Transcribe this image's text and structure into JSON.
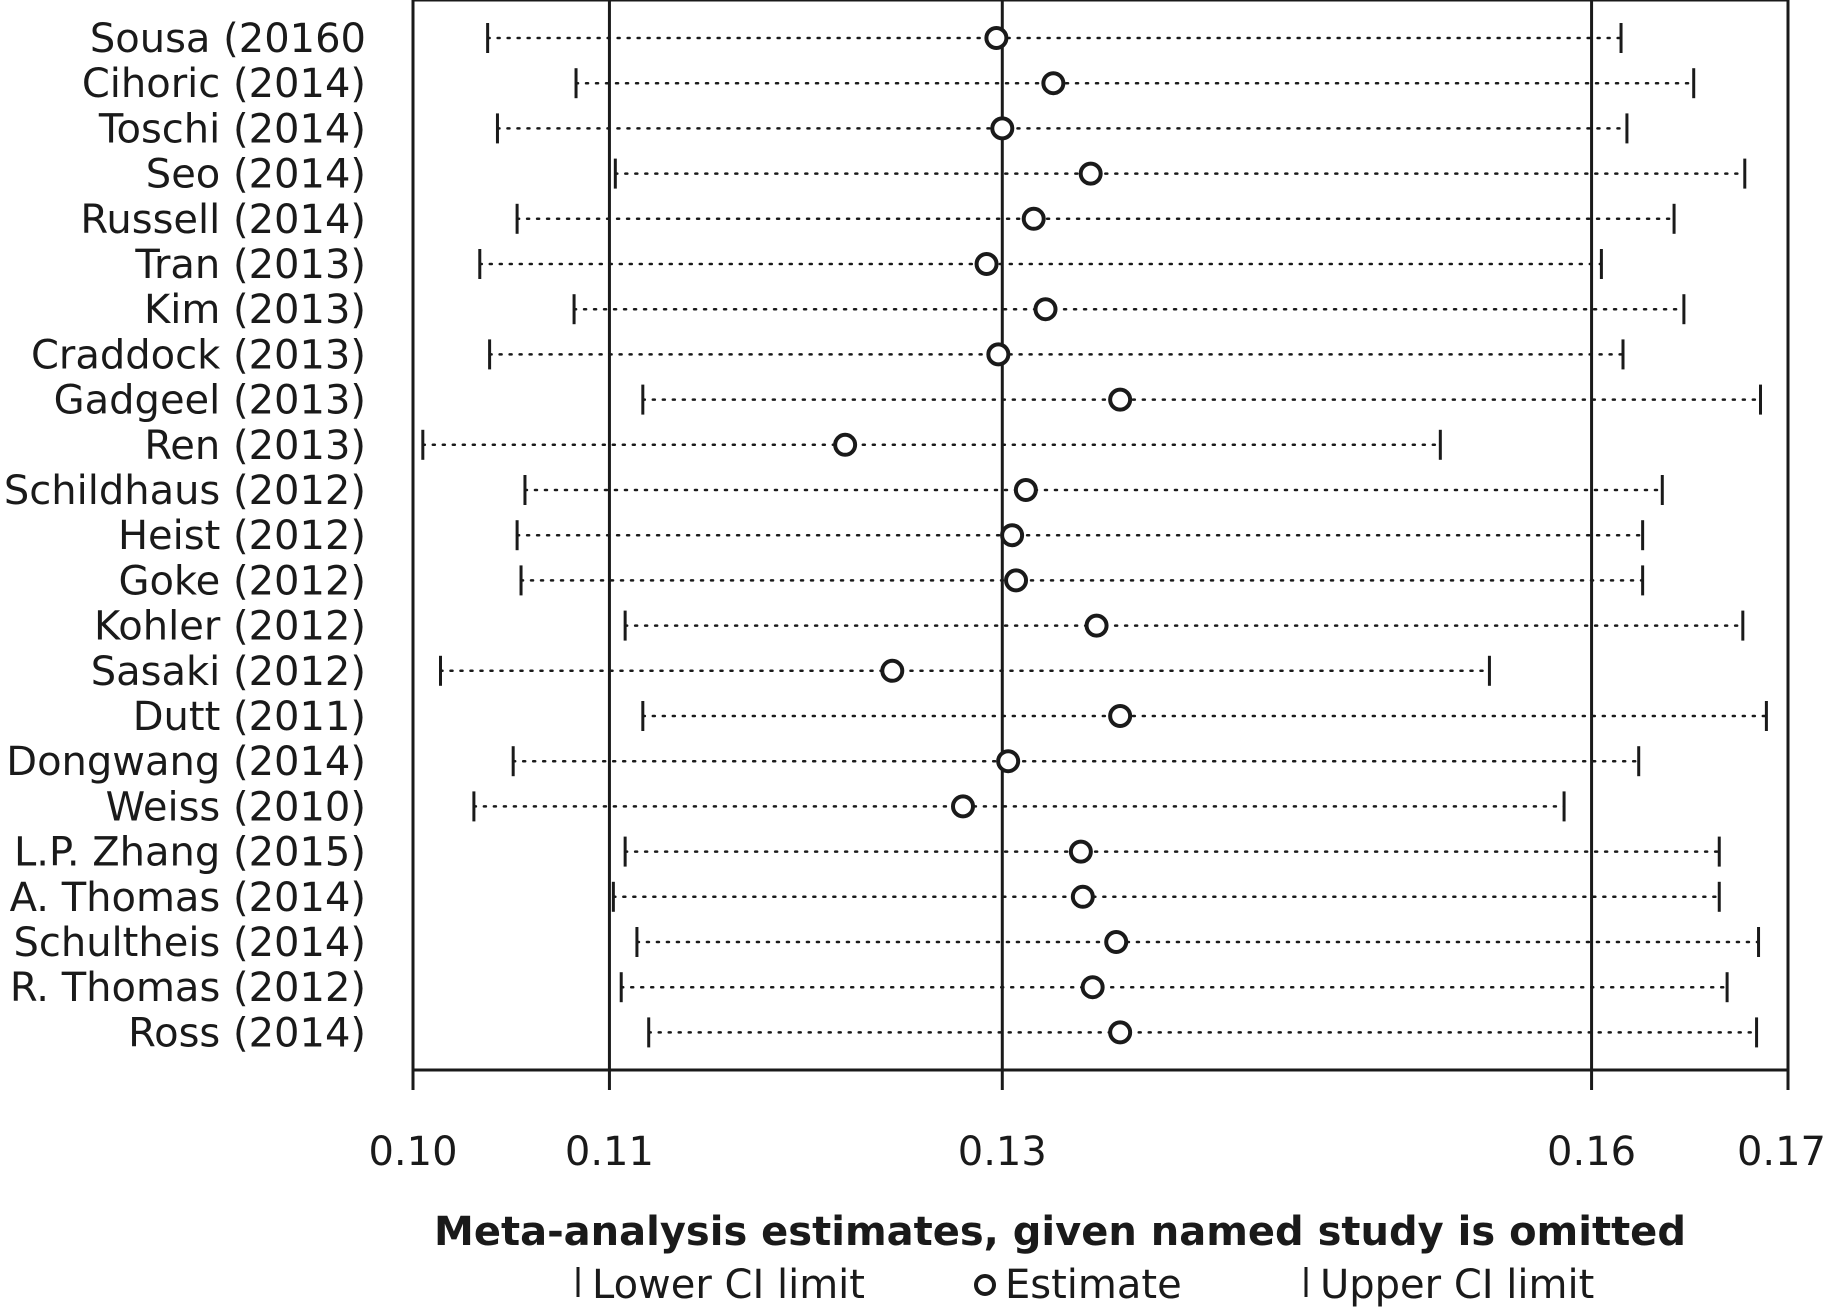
{
  "chart_data": {
    "type": "scatter",
    "subtype": "forest-plot-leave-one-out",
    "xlabel": "Meta-analysis estimates, given named study is omitted",
    "xlim": [
      0.1,
      0.17
    ],
    "xticks": [
      0.1,
      0.11,
      0.13,
      0.16,
      0.17
    ],
    "xtick_labels": [
      "0.10",
      "0.11",
      "0.13",
      "0.16",
      "0.17"
    ],
    "reference_lines": [
      0.11,
      0.13,
      0.16
    ],
    "legend": {
      "lower": "Lower CI limit",
      "estimate": "Estimate",
      "upper": "Upper CI limit"
    },
    "studies": [
      {
        "label": "Sousa (20160",
        "lower": 0.1038,
        "estimate": 0.1297,
        "upper": 0.1615
      },
      {
        "label": "Cihoric (2014)",
        "lower": 0.1083,
        "estimate": 0.1326,
        "upper": 0.1652
      },
      {
        "label": "Toschi (2014)",
        "lower": 0.1043,
        "estimate": 0.13,
        "upper": 0.1618
      },
      {
        "label": "Seo (2014)",
        "lower": 0.1103,
        "estimate": 0.1345,
        "upper": 0.1678
      },
      {
        "label": "Russell (2014)",
        "lower": 0.1053,
        "estimate": 0.1316,
        "upper": 0.1642
      },
      {
        "label": "Tran (2013)",
        "lower": 0.1034,
        "estimate": 0.1292,
        "upper": 0.1605
      },
      {
        "label": "Kim (2013)",
        "lower": 0.1082,
        "estimate": 0.1322,
        "upper": 0.1647
      },
      {
        "label": "Craddock (2013)",
        "lower": 0.1039,
        "estimate": 0.1298,
        "upper": 0.1616
      },
      {
        "label": "Gadgeel (2013)",
        "lower": 0.1117,
        "estimate": 0.136,
        "upper": 0.1686
      },
      {
        "label": "Ren (2013)",
        "lower": 0.1005,
        "estimate": 0.122,
        "upper": 0.1523
      },
      {
        "label": "Schildhaus (2012)",
        "lower": 0.1057,
        "estimate": 0.1312,
        "upper": 0.1636
      },
      {
        "label": "Heist (2012)",
        "lower": 0.1053,
        "estimate": 0.1305,
        "upper": 0.1626
      },
      {
        "label": "Goke (2012)",
        "lower": 0.1055,
        "estimate": 0.1307,
        "upper": 0.1626
      },
      {
        "label": "Kohler (2012)",
        "lower": 0.1108,
        "estimate": 0.1348,
        "upper": 0.1677
      },
      {
        "label": "Sasaki (2012)",
        "lower": 0.1014,
        "estimate": 0.1244,
        "upper": 0.1548
      },
      {
        "label": "Dutt (2011)",
        "lower": 0.1117,
        "estimate": 0.136,
        "upper": 0.1689
      },
      {
        "label": "Dongwang (2014)",
        "lower": 0.1051,
        "estimate": 0.1303,
        "upper": 0.1624
      },
      {
        "label": "Weiss (2010)",
        "lower": 0.1031,
        "estimate": 0.128,
        "upper": 0.1586
      },
      {
        "label": "L.P. Zhang (2015)",
        "lower": 0.1108,
        "estimate": 0.134,
        "upper": 0.1665
      },
      {
        "label": "A. Thomas (2014)",
        "lower": 0.1102,
        "estimate": 0.1341,
        "upper": 0.1665
      },
      {
        "label": "Schultheis (2014)",
        "lower": 0.1114,
        "estimate": 0.1358,
        "upper": 0.1685
      },
      {
        "label": "R. Thomas (2012)",
        "lower": 0.1106,
        "estimate": 0.1346,
        "upper": 0.1669
      },
      {
        "label": "Ross (2014)",
        "lower": 0.112,
        "estimate": 0.136,
        "upper": 0.1684
      }
    ]
  }
}
